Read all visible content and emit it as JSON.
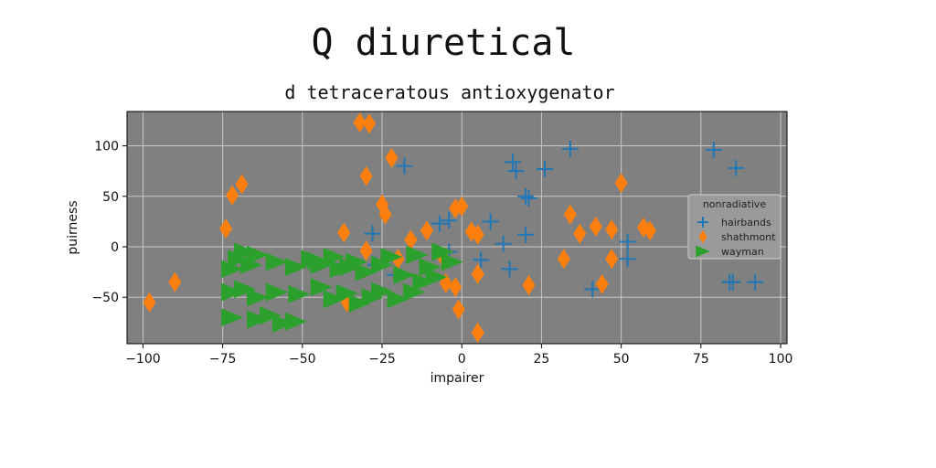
{
  "chart_data": {
    "type": "scatter",
    "suptitle": "Q diuretical",
    "title": "d tetraceratous antioxygenator",
    "xlabel": "impairer",
    "ylabel": "puirness",
    "xlim": [
      -105,
      102
    ],
    "ylim": [
      -96,
      134
    ],
    "xticks": [
      -100,
      -75,
      -50,
      -25,
      0,
      25,
      50,
      75,
      100
    ],
    "yticks": [
      -50,
      0,
      50,
      100
    ],
    "xtick_labels": [
      "−100",
      "−75",
      "−50",
      "−25",
      "0",
      "25",
      "50",
      "75",
      "100"
    ],
    "ytick_labels": [
      "−50",
      "0",
      "50",
      "100"
    ],
    "grid": true,
    "background": "#808080",
    "legend": {
      "title": "nonradiative",
      "placement": "center-right"
    },
    "series": [
      {
        "name": "hairbands",
        "marker": "plus",
        "color": "#1f77b4",
        "points": [
          [
            -18,
            80
          ],
          [
            16,
            84
          ],
          [
            17,
            75
          ],
          [
            26,
            77
          ],
          [
            34,
            97
          ],
          [
            79,
            96
          ],
          [
            86,
            78
          ],
          [
            20,
            50
          ],
          [
            21,
            48
          ],
          [
            9,
            25
          ],
          [
            -7,
            23
          ],
          [
            -4,
            26
          ],
          [
            -28,
            13
          ],
          [
            13,
            3
          ],
          [
            20,
            12
          ],
          [
            52,
            5
          ],
          [
            52,
            -12
          ],
          [
            41,
            -42
          ],
          [
            -27,
            -18
          ],
          [
            -21,
            -28
          ],
          [
            6,
            -13
          ],
          [
            15,
            -22
          ],
          [
            84,
            -35
          ],
          [
            85,
            -35
          ],
          [
            92,
            -35
          ],
          [
            -4,
            -5
          ]
        ]
      },
      {
        "name": "shathmont",
        "marker": "thin_diamond",
        "color": "#ff7f0e",
        "points": [
          [
            -32,
            123
          ],
          [
            -29,
            122
          ],
          [
            -22,
            88
          ],
          [
            -30,
            70
          ],
          [
            -69,
            62
          ],
          [
            -72,
            51
          ],
          [
            -74,
            18
          ],
          [
            -37,
            14
          ],
          [
            -25,
            42
          ],
          [
            -24,
            32
          ],
          [
            -16,
            7
          ],
          [
            -11,
            16
          ],
          [
            -2,
            38
          ],
          [
            0,
            40
          ],
          [
            3,
            15
          ],
          [
            5,
            12
          ],
          [
            -5,
            -36
          ],
          [
            -2,
            -40
          ],
          [
            -1,
            -62
          ],
          [
            5,
            -27
          ],
          [
            5,
            -85
          ],
          [
            21,
            -38
          ],
          [
            32,
            -12
          ],
          [
            34,
            32
          ],
          [
            37,
            13
          ],
          [
            42,
            20
          ],
          [
            47,
            17
          ],
          [
            47,
            -12
          ],
          [
            44,
            -37
          ],
          [
            50,
            63
          ],
          [
            57,
            19
          ],
          [
            59,
            16
          ],
          [
            -98,
            -55
          ],
          [
            -90,
            -35
          ],
          [
            -30,
            -4
          ],
          [
            -20,
            -12
          ],
          [
            -36,
            -55
          ],
          [
            -6,
            -10
          ]
        ]
      },
      {
        "name": "wayman",
        "marker": "triangle_right",
        "color": "#2ca02c",
        "points": [
          [
            -68,
            -5
          ],
          [
            -70,
            -12
          ],
          [
            -72,
            -22
          ],
          [
            -66,
            -18
          ],
          [
            -64,
            -8
          ],
          [
            -58,
            -15
          ],
          [
            -52,
            -20
          ],
          [
            -47,
            -12
          ],
          [
            -44,
            -18
          ],
          [
            -40,
            -10
          ],
          [
            -38,
            -22
          ],
          [
            -33,
            -15
          ],
          [
            -30,
            -25
          ],
          [
            -25,
            -18
          ],
          [
            -22,
            -10
          ],
          [
            -18,
            -28
          ],
          [
            -14,
            -8
          ],
          [
            -10,
            -20
          ],
          [
            -6,
            -5
          ],
          [
            -3,
            -15
          ],
          [
            -72,
            -45
          ],
          [
            -68,
            -42
          ],
          [
            -64,
            -50
          ],
          [
            -58,
            -45
          ],
          [
            -51,
            -47
          ],
          [
            -44,
            -40
          ],
          [
            -40,
            -52
          ],
          [
            -36,
            -46
          ],
          [
            -32,
            -56
          ],
          [
            -28,
            -50
          ],
          [
            -25,
            -44
          ],
          [
            -20,
            -52
          ],
          [
            -15,
            -45
          ],
          [
            -12,
            -35
          ],
          [
            -8,
            -30
          ],
          [
            -72,
            -70
          ],
          [
            -64,
            -72
          ],
          [
            -60,
            -68
          ],
          [
            -56,
            -76
          ],
          [
            -52,
            -74
          ],
          [
            -45,
            -14
          ],
          [
            -35,
            -20
          ]
        ]
      }
    ]
  }
}
